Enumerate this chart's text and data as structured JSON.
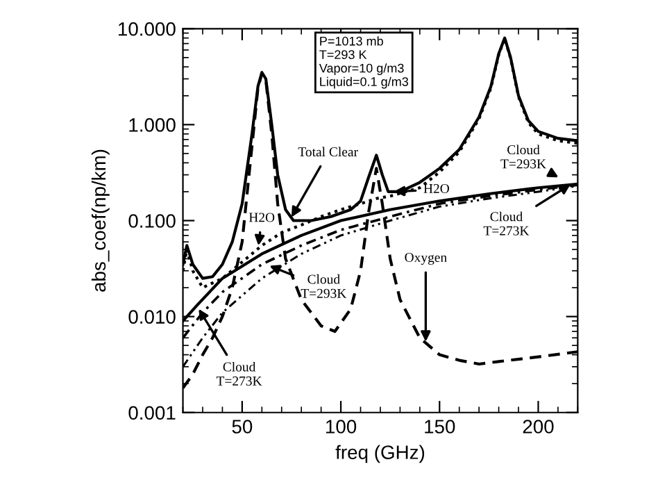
{
  "chart_data": {
    "type": "line",
    "xlabel": "freq (GHz)",
    "ylabel": "abs_coef(np/km)",
    "log": "y",
    "xlim": [
      20,
      220
    ],
    "xticks": [
      50,
      100,
      150,
      200
    ],
    "ylim": [
      0.001,
      10
    ],
    "yticks": [
      {
        "value": 0.001,
        "label": "0.001"
      },
      {
        "value": 0.01,
        "label": "0.010"
      },
      {
        "value": 0.1,
        "label": "0.100"
      },
      {
        "value": 1,
        "label": "1.000"
      },
      {
        "value": 10,
        "label": "10.000"
      }
    ],
    "grid": false,
    "legend": false,
    "series": [
      {
        "color": "#000000",
        "line_style": "solid",
        "x": [
          20,
          22,
          25,
          30,
          35,
          40,
          45,
          50,
          55,
          58,
          60,
          62,
          65,
          68,
          72,
          76,
          85,
          95,
          105,
          110,
          114,
          118,
          121,
          124,
          130,
          140,
          150,
          160,
          170,
          176,
          180,
          183,
          186,
          190,
          195,
          200,
          210,
          220
        ],
        "values": [
          0.035,
          0.055,
          0.035,
          0.025,
          0.026,
          0.035,
          0.06,
          0.15,
          0.8,
          2.5,
          3.5,
          3.0,
          1.0,
          0.3,
          0.13,
          0.1,
          0.1,
          0.11,
          0.13,
          0.16,
          0.28,
          0.48,
          0.3,
          0.2,
          0.2,
          0.25,
          0.35,
          0.55,
          1.2,
          2.5,
          5.5,
          8.0,
          5.0,
          2.0,
          1.1,
          0.85,
          0.72,
          0.68
        ]
      },
      {
        "color": "#000000",
        "line_style": "dotted",
        "x": [
          20,
          22,
          25,
          30,
          40,
          50,
          60,
          70,
          80,
          90,
          100,
          110,
          118,
          125,
          140,
          150,
          160,
          170,
          176,
          180,
          183,
          186,
          190,
          195,
          200,
          210,
          220
        ],
        "values": [
          0.03,
          0.05,
          0.03,
          0.02,
          0.025,
          0.037,
          0.055,
          0.075,
          0.09,
          0.11,
          0.13,
          0.15,
          0.17,
          0.18,
          0.22,
          0.32,
          0.52,
          1.15,
          2.4,
          5.4,
          7.9,
          4.9,
          1.95,
          1.05,
          0.8,
          0.68,
          0.64
        ]
      },
      {
        "color": "#000000",
        "line_style": "dashed",
        "x": [
          20,
          25,
          30,
          35,
          40,
          45,
          50,
          55,
          58,
          60,
          62,
          65,
          68,
          72,
          80,
          90,
          97,
          105,
          110,
          114,
          118,
          121,
          125,
          130,
          140,
          150,
          160,
          170,
          180,
          200,
          220
        ],
        "values": [
          0.0018,
          0.0025,
          0.004,
          0.006,
          0.01,
          0.02,
          0.06,
          0.6,
          2.4,
          3.4,
          2.9,
          0.8,
          0.15,
          0.04,
          0.015,
          0.008,
          0.007,
          0.012,
          0.03,
          0.12,
          0.35,
          0.15,
          0.04,
          0.015,
          0.006,
          0.004,
          0.0035,
          0.0032,
          0.0034,
          0.0038,
          0.0043
        ]
      },
      {
        "color": "#000000",
        "line_style": "solid",
        "x": [
          20,
          27,
          40,
          60,
          80,
          100,
          125,
          150,
          175,
          200,
          220
        ],
        "values": [
          0.009,
          0.013,
          0.025,
          0.045,
          0.07,
          0.1,
          0.13,
          0.16,
          0.19,
          0.22,
          0.24
        ]
      },
      {
        "color": "#000000",
        "line_style": "dashdot",
        "x": [
          20,
          30,
          40,
          60,
          80,
          100,
          125,
          150,
          175,
          200,
          220
        ],
        "values": [
          0.006,
          0.011,
          0.018,
          0.035,
          0.055,
          0.08,
          0.11,
          0.15,
          0.18,
          0.21,
          0.235
        ]
      },
      {
        "color": "#000000",
        "line_style": "dashdotdot",
        "x": [
          20,
          30,
          40,
          60,
          80,
          100,
          125,
          150,
          175,
          200,
          220
        ],
        "values": [
          0.003,
          0.006,
          0.011,
          0.025,
          0.045,
          0.07,
          0.1,
          0.14,
          0.17,
          0.2,
          0.23
        ]
      }
    ],
    "annotations": [
      "P=1013 mb\nT=293 K\nVapor=10 g/m3\nLiquid=0.1 g/m3",
      {
        "text": "Total Clear",
        "x": 74,
        "y": 0.1
      },
      {
        "text": "H2O",
        "x": 58,
        "y": 0.05
      },
      {
        "text": "H2O",
        "x": 125,
        "y": 0.2
      },
      {
        "text": "Cloud\nT=293K",
        "x": 62,
        "y": 0.035
      },
      {
        "text": "Cloud\nT=273K",
        "x": 27,
        "y": 0.013
      },
      {
        "text": "Oxygen",
        "x": 143,
        "y": 0.005
      },
      {
        "text": "Cloud\nT=293K",
        "x": 212,
        "y": 0.27
      },
      {
        "text": "Cloud\nT=273K",
        "x": 218,
        "y": 0.25
      }
    ]
  }
}
